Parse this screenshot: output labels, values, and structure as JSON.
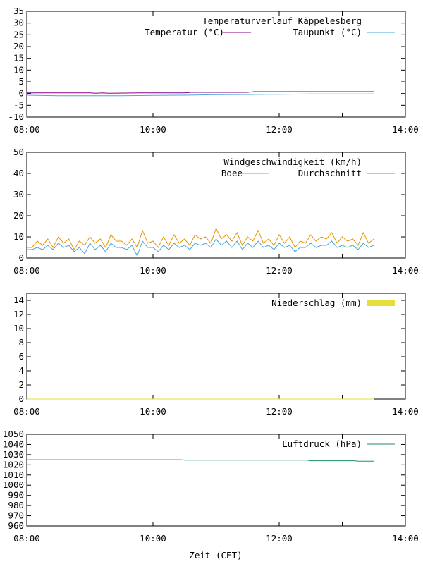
{
  "x_axis_label": "Zeit (CET)",
  "x_tick_labels": [
    "08:00",
    "10:00",
    "12:00",
    "14:00"
  ],
  "chart_data": [
    {
      "type": "line",
      "title": "Temperaturverlauf Käppelesberg",
      "x_unit": "hour",
      "xlim": [
        8,
        14
      ],
      "ylim": [
        -10,
        35
      ],
      "yticks": [
        -10,
        -5,
        0,
        5,
        10,
        15,
        20,
        25,
        30,
        35
      ],
      "grid": false,
      "legend_position": "top-right",
      "series": [
        {
          "name": "Temperatur (°C)",
          "color": "#8b008b",
          "x": [
            8.0,
            9.0,
            9.1,
            9.2,
            9.3,
            9.8,
            10.0,
            10.5,
            10.6,
            11.0,
            11.5,
            11.6,
            12.0,
            12.5,
            13.0,
            13.5
          ],
          "y": [
            0.3,
            0.3,
            0.1,
            0.3,
            0.1,
            0.3,
            0.3,
            0.3,
            0.5,
            0.5,
            0.5,
            0.8,
            0.8,
            0.8,
            0.8,
            0.8
          ]
        },
        {
          "name": "Taupunkt (°C)",
          "color": "#4aa8d8",
          "x": [
            8.0,
            8.5,
            9.0,
            9.5,
            10.0,
            10.5,
            11.0,
            11.5,
            12.0,
            12.5,
            13.0,
            13.5
          ],
          "y": [
            -0.7,
            -0.9,
            -0.9,
            -0.9,
            -0.8,
            -0.7,
            -0.5,
            -0.4,
            -0.3,
            -0.2,
            -0.2,
            -0.2
          ]
        }
      ]
    },
    {
      "type": "line",
      "title": "Windgeschwindigkeit (km/h)",
      "x_unit": "hour",
      "xlim": [
        8,
        14
      ],
      "ylim": [
        0,
        50
      ],
      "yticks": [
        0,
        10,
        20,
        30,
        40,
        50
      ],
      "grid": false,
      "legend_position": "top-right",
      "series": [
        {
          "name": "Boee",
          "color": "#e69500",
          "x": [
            8.0,
            8.083,
            8.167,
            8.25,
            8.333,
            8.417,
            8.5,
            8.583,
            8.667,
            8.75,
            8.833,
            8.917,
            9.0,
            9.083,
            9.167,
            9.25,
            9.333,
            9.417,
            9.5,
            9.583,
            9.667,
            9.75,
            9.833,
            9.917,
            10.0,
            10.083,
            10.167,
            10.25,
            10.333,
            10.417,
            10.5,
            10.583,
            10.667,
            10.75,
            10.833,
            10.917,
            11.0,
            11.083,
            11.167,
            11.25,
            11.333,
            11.417,
            11.5,
            11.583,
            11.667,
            11.75,
            11.833,
            11.917,
            12.0,
            12.083,
            12.167,
            12.25,
            12.333,
            12.417,
            12.5,
            12.583,
            12.667,
            12.75,
            12.833,
            12.917,
            13.0,
            13.083,
            13.167,
            13.25,
            13.333,
            13.417,
            13.5
          ],
          "y": [
            5,
            5,
            8,
            6,
            9,
            5,
            10,
            7,
            9,
            4,
            8,
            6,
            10,
            7,
            9,
            5,
            11,
            8,
            8,
            6,
            9,
            5,
            13,
            7,
            8,
            5,
            10,
            6,
            11,
            7,
            9,
            6,
            11,
            9,
            10,
            7,
            14,
            9,
            11,
            8,
            12,
            6,
            10,
            8,
            13,
            7,
            9,
            6,
            11,
            7,
            10,
            5,
            8,
            7,
            11,
            8,
            10,
            9,
            12,
            7,
            10,
            8,
            9,
            6,
            12,
            7,
            9
          ]
        },
        {
          "name": "Durchschnitt",
          "color": "#4aa8d8",
          "x": [
            8.0,
            8.083,
            8.167,
            8.25,
            8.333,
            8.417,
            8.5,
            8.583,
            8.667,
            8.75,
            8.833,
            8.917,
            9.0,
            9.083,
            9.167,
            9.25,
            9.333,
            9.417,
            9.5,
            9.583,
            9.667,
            9.75,
            9.833,
            9.917,
            10.0,
            10.083,
            10.167,
            10.25,
            10.333,
            10.417,
            10.5,
            10.583,
            10.667,
            10.75,
            10.833,
            10.917,
            11.0,
            11.083,
            11.167,
            11.25,
            11.333,
            11.417,
            11.5,
            11.583,
            11.667,
            11.75,
            11.833,
            11.917,
            12.0,
            12.083,
            12.167,
            12.25,
            12.333,
            12.417,
            12.5,
            12.583,
            12.667,
            12.75,
            12.833,
            12.917,
            13.0,
            13.083,
            13.167,
            13.25,
            13.333,
            13.417,
            13.5
          ],
          "y": [
            4,
            4,
            5,
            4,
            6,
            4,
            7,
            5,
            6,
            3,
            5,
            2,
            7,
            4,
            6,
            3,
            7,
            5,
            5,
            4,
            6,
            1,
            8,
            5,
            5,
            3,
            6,
            4,
            7,
            5,
            6,
            4,
            7,
            6,
            7,
            5,
            9,
            6,
            8,
            5,
            8,
            4,
            7,
            5,
            8,
            5,
            6,
            4,
            7,
            5,
            6,
            3,
            5,
            5,
            7,
            5,
            6,
            6,
            8,
            5,
            6,
            5,
            6,
            4,
            7,
            5,
            6
          ]
        }
      ]
    },
    {
      "type": "area",
      "title": "Niederschlag (mm)",
      "x_unit": "hour",
      "xlim": [
        8,
        14
      ],
      "ylim": [
        0,
        15
      ],
      "yticks": [
        0,
        2,
        4,
        6,
        8,
        10,
        12,
        14
      ],
      "grid": false,
      "legend_position": "top-right",
      "series": [
        {
          "name": "Niederschlag (mm)",
          "color": "#e6de3c",
          "x": [
            8.0,
            13.5
          ],
          "y": [
            0,
            0
          ]
        }
      ]
    },
    {
      "type": "line",
      "title": "Luftdruck (hPa)",
      "x_unit": "hour",
      "xlim": [
        8,
        14
      ],
      "ylim": [
        960,
        1050
      ],
      "yticks": [
        960,
        970,
        980,
        990,
        1000,
        1010,
        1020,
        1030,
        1040,
        1050
      ],
      "grid": false,
      "legend_position": "top-right",
      "series": [
        {
          "name": "Luftdruck (hPa)",
          "color": "#1e8f6e",
          "x": [
            8.0,
            9.0,
            10.0,
            10.45,
            10.5,
            11.5,
            12.0,
            12.45,
            12.5,
            13.0,
            13.2,
            13.25,
            13.5
          ],
          "y": [
            1025,
            1025,
            1025,
            1025,
            1024.5,
            1024.5,
            1024.5,
            1024.5,
            1024,
            1024,
            1024,
            1023.5,
            1023.5
          ]
        }
      ]
    }
  ]
}
